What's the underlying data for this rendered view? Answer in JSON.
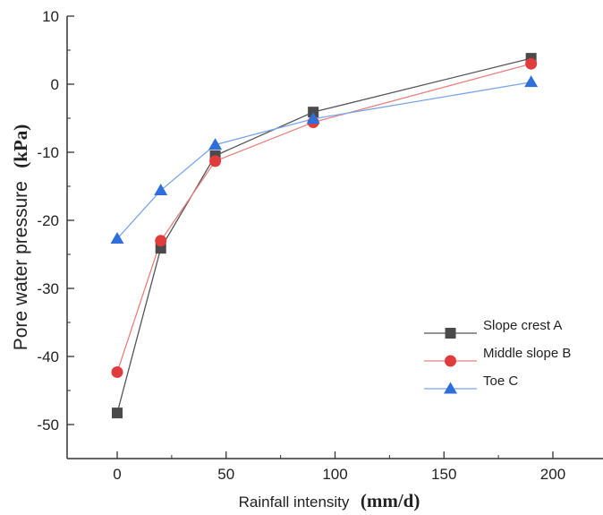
{
  "chart_data": {
    "type": "line",
    "x": [
      0,
      20,
      45,
      90,
      190
    ],
    "series": [
      {
        "name": "Slope crest A",
        "marker": "square",
        "color": "#4a4a4a",
        "line_color": "#555555",
        "x": [
          0,
          20,
          45,
          90,
          190
        ],
        "values": [
          -48.3,
          -24.1,
          -10.5,
          -4.1,
          3.8
        ]
      },
      {
        "name": "Middle slope B",
        "marker": "circle",
        "color": "#e03c3c",
        "line_color": "#e88080",
        "x": [
          0,
          20,
          45,
          90,
          190
        ],
        "values": [
          -42.3,
          -23.0,
          -11.3,
          -5.6,
          3.0
        ]
      },
      {
        "name": "Toe C",
        "marker": "triangle",
        "color": "#2f6fdb",
        "line_color": "#7aa5e8",
        "x": [
          0,
          20,
          45,
          90,
          190
        ],
        "values": [
          -22.7,
          -15.6,
          -8.9,
          -5.1,
          0.3
        ]
      }
    ],
    "xlabel": "Rainfall intensity",
    "xlabel_unit": "(mm/d)",
    "ylabel": "Pore water pressure",
    "ylabel_unit": "(kPa)",
    "xlim": [
      -23,
      223
    ],
    "ylim": [
      -55,
      10
    ],
    "xticks": [
      0,
      50,
      100,
      150,
      200
    ],
    "yticks": [
      10,
      0,
      -10,
      -20,
      -30,
      -40,
      -50
    ],
    "grid": false,
    "legend_position": "lower-right"
  }
}
